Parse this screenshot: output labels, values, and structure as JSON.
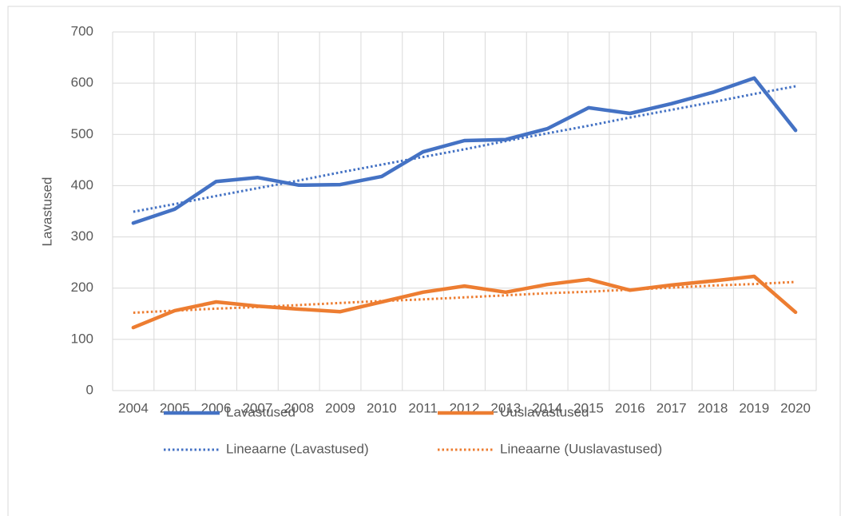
{
  "chart_data": {
    "type": "line",
    "y_label": "Lavastused",
    "categories": [
      "2004",
      "2005",
      "2006",
      "2007",
      "2008",
      "2009",
      "2010",
      "2011",
      "2012",
      "2013",
      "2014",
      "2015",
      "2016",
      "2017",
      "2018",
      "2019",
      "2020"
    ],
    "series": [
      {
        "name": "Lavastused",
        "color": "#4472c4",
        "dash": false,
        "values": [
          327,
          354,
          408,
          416,
          401,
          402,
          418,
          466,
          488,
          490,
          511,
          552,
          541,
          560,
          582,
          610,
          508
        ]
      },
      {
        "name": "Uuslavastused",
        "color": "#ed7d31",
        "dash": false,
        "values": [
          123,
          156,
          173,
          165,
          159,
          154,
          173,
          192,
          204,
          192,
          207,
          217,
          196,
          206,
          214,
          223,
          153
        ]
      },
      {
        "name": "Lineaarne (Lavastused)",
        "color": "#4472c4",
        "dash": true,
        "values": [
          349,
          364,
          380,
          395,
          410,
          426,
          441,
          456,
          471,
          487,
          502,
          517,
          533,
          548,
          563,
          579,
          594
        ]
      },
      {
        "name": "Lineaarne (Uuslavastused)",
        "color": "#ed7d31",
        "dash": true,
        "values": [
          152,
          156,
          160,
          163,
          167,
          171,
          175,
          178,
          182,
          186,
          190,
          193,
          197,
          201,
          205,
          208,
          212
        ]
      }
    ],
    "ylim": [
      0,
      700
    ],
    "yticks": [
      0,
      100,
      200,
      300,
      400,
      500,
      600,
      700
    ],
    "grid": true
  }
}
